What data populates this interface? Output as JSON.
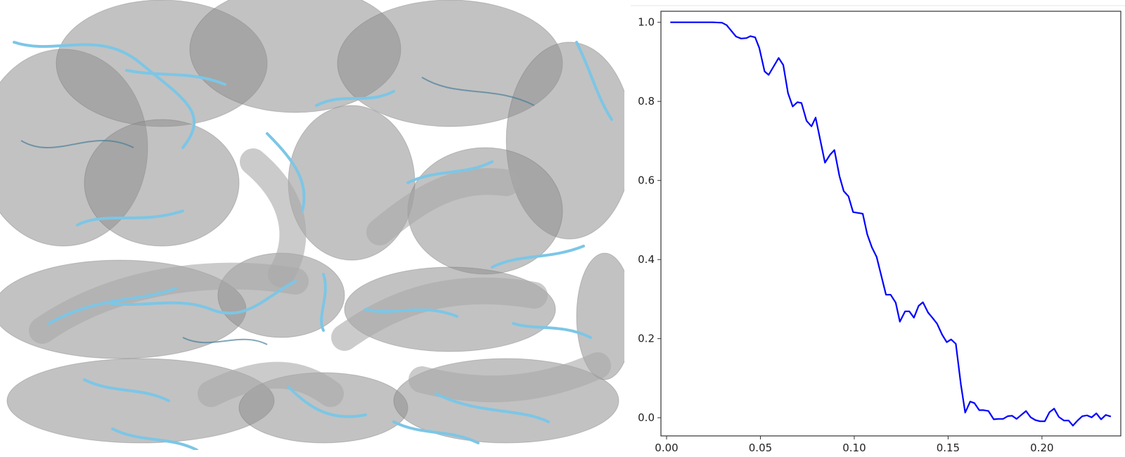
{
  "figure": {
    "left_panel": "molecular density map with ribbon model",
    "colors": {
      "density": "#9a9a9a",
      "ribbon": "#7cc6e6",
      "curve": "#0000ff",
      "axes": "#333333"
    }
  },
  "chart_data": {
    "type": "line",
    "title": "",
    "xlabel": "",
    "ylabel": "",
    "xlim": [
      -0.003,
      0.242
    ],
    "ylim": [
      -0.046,
      1.028
    ],
    "grid": false,
    "x_ticks": [
      0.0,
      0.05,
      0.1,
      0.15,
      0.2
    ],
    "x_tick_labels": [
      "0.00",
      "0.05",
      "0.10",
      "0.15",
      "0.20"
    ],
    "y_ticks": [
      0.0,
      0.2,
      0.4,
      0.6,
      0.8,
      1.0
    ],
    "y_tick_labels": [
      "0.0",
      "0.2",
      "0.4",
      "0.6",
      "0.8",
      "1.0"
    ],
    "series": [
      {
        "color": "#0000ff",
        "x": [
          0.002,
          0.0245,
          0.0295,
          0.032,
          0.037,
          0.0397,
          0.0426,
          0.0447,
          0.0472,
          0.0494,
          0.0522,
          0.0544,
          0.0597,
          0.0622,
          0.0647,
          0.0672,
          0.0697,
          0.0719,
          0.0746,
          0.0772,
          0.0794,
          0.0844,
          0.0871,
          0.0894,
          0.0921,
          0.0944,
          0.0969,
          0.0994,
          0.1045,
          0.1069,
          0.1094,
          0.1119,
          0.1169,
          0.1194,
          0.1221,
          0.1243,
          0.1271,
          0.1293,
          0.1318,
          0.1343,
          0.1366,
          0.1393,
          0.1418,
          0.1441,
          0.1468,
          0.1493,
          0.1516,
          0.1541,
          0.1568,
          0.1591,
          0.1618,
          0.164,
          0.1666,
          0.169,
          0.1715,
          0.1743,
          0.1768,
          0.1793,
          0.1818,
          0.1841,
          0.1865,
          0.189,
          0.1915,
          0.194,
          0.1965,
          0.199,
          0.2015,
          0.204,
          0.2065,
          0.209,
          0.2117,
          0.2142,
          0.2165,
          0.219,
          0.2215,
          0.224,
          0.2265,
          0.229,
          0.2315,
          0.234,
          0.2367
        ],
        "y": [
          1.0,
          1.0,
          0.999,
          0.993,
          0.964,
          0.959,
          0.96,
          0.965,
          0.962,
          0.935,
          0.876,
          0.867,
          0.91,
          0.892,
          0.821,
          0.787,
          0.798,
          0.796,
          0.751,
          0.737,
          0.759,
          0.645,
          0.665,
          0.677,
          0.611,
          0.573,
          0.56,
          0.52,
          0.516,
          0.464,
          0.431,
          0.407,
          0.311,
          0.311,
          0.291,
          0.243,
          0.269,
          0.269,
          0.253,
          0.283,
          0.292,
          0.266,
          0.252,
          0.238,
          0.21,
          0.191,
          0.198,
          0.187,
          0.084,
          0.013,
          0.041,
          0.037,
          0.019,
          0.019,
          0.017,
          -0.004,
          -0.003,
          -0.003,
          0.004,
          0.005,
          -0.003,
          0.007,
          0.017,
          0.001,
          -0.006,
          -0.009,
          -0.009,
          0.014,
          0.023,
          0.002,
          -0.007,
          -0.007,
          -0.02,
          -0.007,
          0.004,
          0.006,
          0.001,
          0.011,
          -0.004,
          0.007,
          0.003
        ]
      }
    ]
  }
}
